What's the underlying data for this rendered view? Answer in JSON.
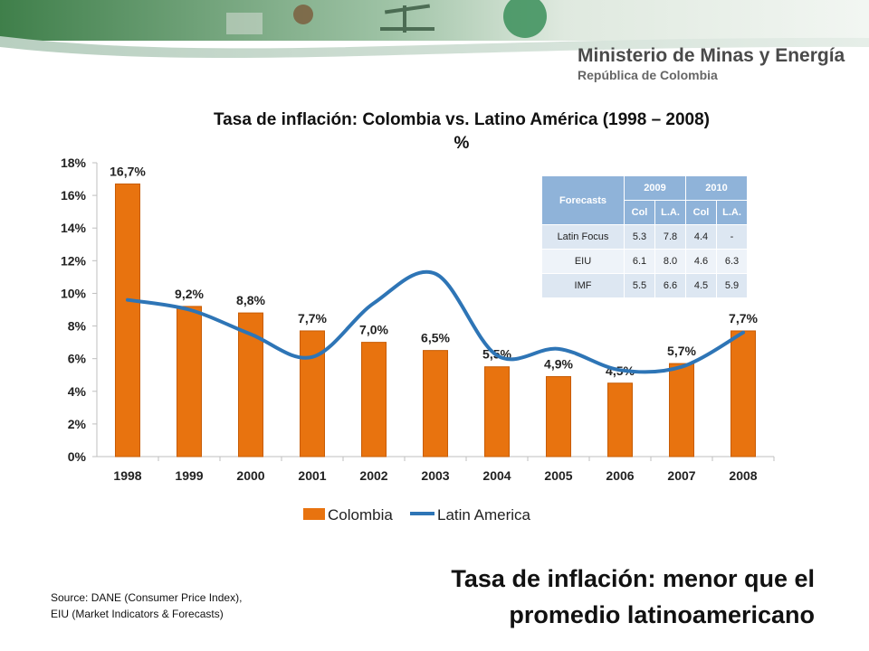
{
  "header": {
    "ministry": "Ministerio de Minas y Energía",
    "country": "República de Colombia"
  },
  "chart_title_line1": "Tasa de inflación:  Colombia vs. Latino América (1998 – 2008)",
  "chart_title_line2": "%",
  "chart_data": {
    "type": "bar",
    "title": "Tasa de inflación:  Colombia vs. Latino América (1998 – 2008) %",
    "categories": [
      "1998",
      "1999",
      "2000",
      "2001",
      "2002",
      "2003",
      "2004",
      "2005",
      "2006",
      "2007",
      "2008"
    ],
    "series": [
      {
        "name": "Colombia",
        "type": "bar",
        "color": "#E8730F",
        "values": [
          16.7,
          9.2,
          8.8,
          7.7,
          7.0,
          6.5,
          5.5,
          4.9,
          4.5,
          5.7,
          7.7
        ],
        "labels": [
          "16,7%",
          "9,2%",
          "8,8%",
          "7,7%",
          "7,0%",
          "6,5%",
          "5,5%",
          "4,9%",
          "4,5%",
          "5,7%",
          "7,7%"
        ]
      },
      {
        "name": "Latin America",
        "type": "line",
        "color": "#2E75B6",
        "values": [
          9.6,
          9.0,
          7.5,
          6.1,
          9.4,
          11.2,
          6.2,
          6.6,
          5.3,
          5.5,
          7.6
        ]
      }
    ],
    "ylim": [
      0,
      18
    ],
    "yticks": [
      0,
      2,
      4,
      6,
      8,
      10,
      12,
      14,
      16,
      18
    ],
    "ytick_labels": [
      "0%",
      "2%",
      "4%",
      "6%",
      "8%",
      "10%",
      "12%",
      "14%",
      "16%",
      "18%"
    ],
    "legend_position": "bottom"
  },
  "forecast_table": {
    "corner": "Forecasts",
    "years": [
      "2009",
      "2010"
    ],
    "subheaders": [
      "Col",
      "L.A.",
      "Col",
      "L.A."
    ],
    "rows": [
      {
        "label": "Latin Focus",
        "values": [
          "5.3",
          "7.8",
          "4.4",
          "-"
        ]
      },
      {
        "label": "EIU",
        "values": [
          "6.1",
          "8.0",
          "4.6",
          "6.3"
        ]
      },
      {
        "label": "IMF",
        "values": [
          "5.5",
          "6.6",
          "4.5",
          "5.9"
        ]
      }
    ]
  },
  "source": {
    "line1": "Source: DANE (Consumer Price Index),",
    "line2": "EIU (Market Indicators & Forecasts)"
  },
  "headline": {
    "line1": "Tasa de inflación: menor que el",
    "line2": "promedio latinoamericano"
  }
}
